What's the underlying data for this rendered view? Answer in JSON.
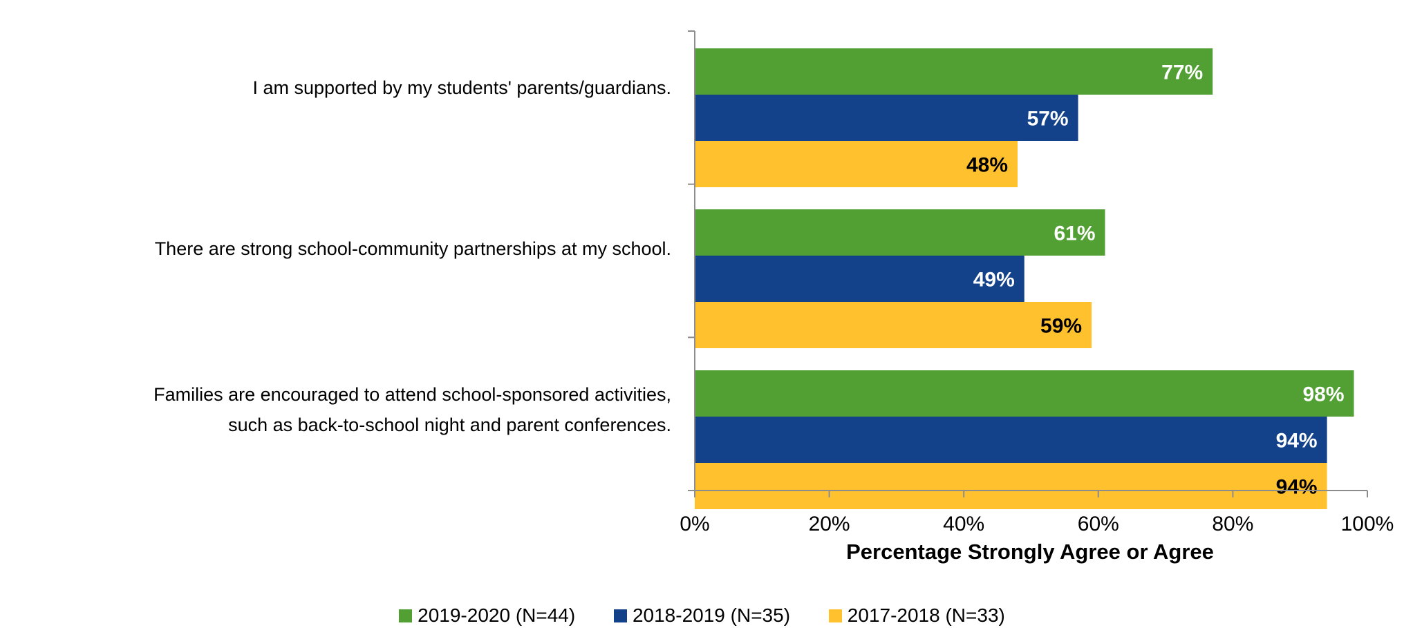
{
  "chart_data": {
    "type": "bar",
    "orientation": "horizontal",
    "categories": [
      "I am supported by my students' parents/guardians.",
      "There are strong school-community partnerships at my school.",
      "Families are encouraged to attend school-sponsored activities,\nsuch as back-to-school night and parent conferences."
    ],
    "series": [
      {
        "name": "2019-2020 (N=44)",
        "values": [
          77,
          61,
          98
        ],
        "labels": [
          "77%",
          "61%",
          "98%"
        ],
        "color": "#52A034",
        "label_color": "#ffffff"
      },
      {
        "name": "2018-2019 (N=35)",
        "values": [
          57,
          49,
          94
        ],
        "labels": [
          "57%",
          "49%",
          "94%"
        ],
        "color": "#14428A",
        "label_color": "#ffffff"
      },
      {
        "name": "2017-2018 (N=33)",
        "values": [
          48,
          59,
          94
        ],
        "labels": [
          "48%",
          "59%",
          "94%"
        ],
        "color": "#FFC12E",
        "label_color": "#000000"
      }
    ],
    "xlabel": "Percentage Strongly Agree or Agree",
    "xlim": [
      0,
      100
    ],
    "xticks": [
      "0%",
      "20%",
      "40%",
      "60%",
      "80%",
      "100%"
    ],
    "grid": false,
    "legend_position": "bottom"
  }
}
